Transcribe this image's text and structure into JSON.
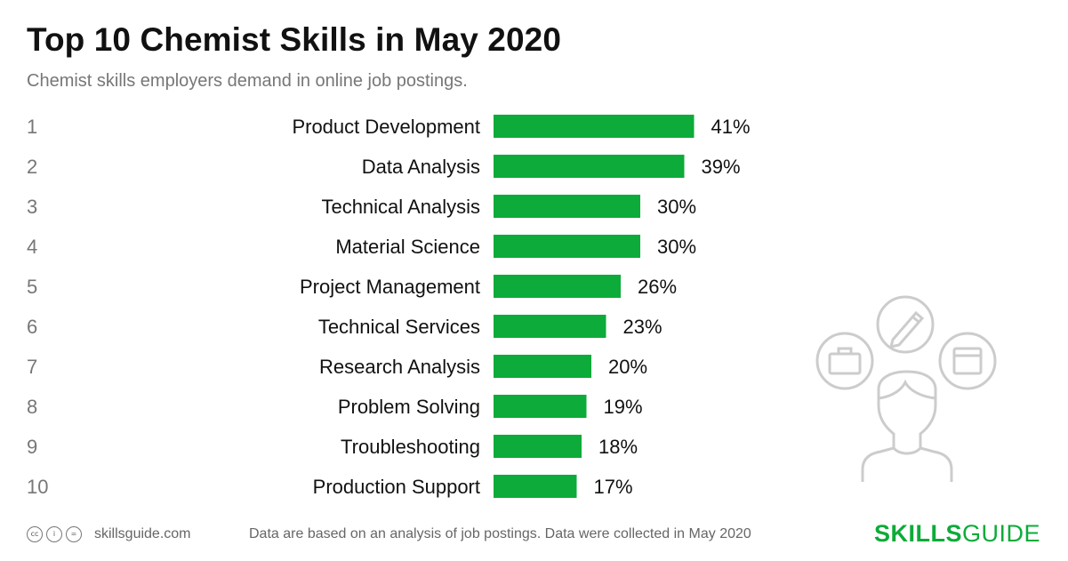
{
  "header": {
    "title": "Top 10 Chemist Skills in May 2020",
    "subtitle": "Chemist skills employers demand in online job postings."
  },
  "chart_data": {
    "type": "bar",
    "orientation": "horizontal",
    "ranks": [
      "1",
      "2",
      "3",
      "4",
      "5",
      "6",
      "7",
      "8",
      "9",
      "10"
    ],
    "categories": [
      "Product Development",
      "Data Analysis",
      "Technical Analysis",
      "Material Science",
      "Project Management",
      "Technical Services",
      "Research Analysis",
      "Problem Solving",
      "Troubleshooting",
      "Production Support"
    ],
    "values": [
      41,
      39,
      30,
      30,
      26,
      23,
      20,
      19,
      18,
      17
    ],
    "value_labels": [
      "41%",
      "39%",
      "30%",
      "30%",
      "26%",
      "23%",
      "20%",
      "19%",
      "18%",
      "17%"
    ],
    "unit": "%",
    "bar_color": "#0dab39",
    "grid": false,
    "legend": "none"
  },
  "footer": {
    "license_icons": [
      "cc-icon",
      "by-icon",
      "nd-icon"
    ],
    "site": "skillsguide.com",
    "note": "Data are based on an analysis of job postings. Data were collected in May 2020",
    "logo_bold": "SKILLS",
    "logo_light": "GUIDE"
  },
  "illustration": {
    "icons": [
      "person-icon",
      "briefcase-icon",
      "pencil-icon",
      "window-icon"
    ]
  }
}
